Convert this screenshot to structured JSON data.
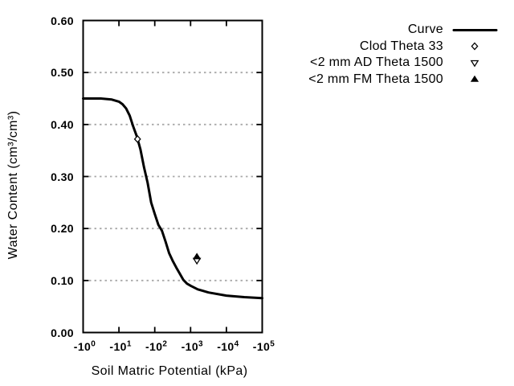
{
  "chart_data": {
    "type": "line",
    "title": "",
    "xlabel": "Soil Matric Potential (kPa)",
    "ylabel": "Water Content (cm³/cm³)",
    "x_axis": {
      "scale": "negative-log10",
      "unit": "kPa",
      "range_kpa": [
        -1,
        -100000
      ],
      "ticks": [
        {
          "mantissa": "-10",
          "exponent": "0",
          "log10_abs": 0
        },
        {
          "mantissa": "-10",
          "exponent": "1",
          "log10_abs": 1
        },
        {
          "mantissa": "-10",
          "exponent": "2",
          "log10_abs": 2
        },
        {
          "mantissa": "-10",
          "exponent": "3",
          "log10_abs": 3
        },
        {
          "mantissa": "-10",
          "exponent": "4",
          "log10_abs": 4
        },
        {
          "mantissa": "-10",
          "exponent": "5",
          "log10_abs": 5
        }
      ]
    },
    "y_axis": {
      "min": 0.0,
      "max": 0.6,
      "ticks": [
        {
          "label": "0.00",
          "value": 0.0
        },
        {
          "label": "0.10",
          "value": 0.1
        },
        {
          "label": "0.20",
          "value": 0.2
        },
        {
          "label": "0.30",
          "value": 0.3
        },
        {
          "label": "0.40",
          "value": 0.4
        },
        {
          "label": "0.50",
          "value": 0.5
        },
        {
          "label": "0.60",
          "value": 0.6
        }
      ]
    },
    "grid": {
      "horizontal": true,
      "vertical": false,
      "style": "dotted",
      "color": "#aaaaaa"
    },
    "legend_position": "outside-top-right",
    "series": [
      {
        "name": "Curve",
        "type": "line",
        "marker": "none",
        "color": "#000000",
        "points_log10abs_theta": [
          [
            0.0,
            0.45
          ],
          [
            0.5,
            0.45
          ],
          [
            0.8,
            0.448
          ],
          [
            1.0,
            0.444
          ],
          [
            1.1,
            0.439
          ],
          [
            1.2,
            0.431
          ],
          [
            1.3,
            0.417
          ],
          [
            1.4,
            0.396
          ],
          [
            1.5,
            0.377
          ],
          [
            1.6,
            0.352
          ],
          [
            1.7,
            0.318
          ],
          [
            1.8,
            0.288
          ],
          [
            1.9,
            0.25
          ],
          [
            2.0,
            0.228
          ],
          [
            2.1,
            0.207
          ],
          [
            2.2,
            0.196
          ],
          [
            2.3,
            0.175
          ],
          [
            2.4,
            0.153
          ],
          [
            2.5,
            0.138
          ],
          [
            2.6,
            0.125
          ],
          [
            2.7,
            0.113
          ],
          [
            2.8,
            0.101
          ],
          [
            2.9,
            0.094
          ],
          [
            3.0,
            0.09
          ],
          [
            3.2,
            0.083
          ],
          [
            3.5,
            0.077
          ],
          [
            4.0,
            0.071
          ],
          [
            4.5,
            0.068
          ],
          [
            5.0,
            0.066
          ]
        ]
      },
      {
        "name": "Clod Theta 33",
        "type": "scatter",
        "marker": "open-diamond",
        "color": "#000000",
        "points_kpa_theta": [
          [
            -33,
            0.372
          ]
        ]
      },
      {
        "name": "<2 mm AD Theta 1500",
        "type": "scatter",
        "marker": "open-triangle-down",
        "color": "#000000",
        "points_kpa_theta": [
          [
            -1500,
            0.138
          ]
        ]
      },
      {
        "name": "<2 mm FM Theta 1500",
        "type": "scatter",
        "marker": "filled-triangle-up",
        "color": "#000000",
        "points_kpa_theta": [
          [
            -1500,
            0.146
          ]
        ]
      }
    ]
  }
}
